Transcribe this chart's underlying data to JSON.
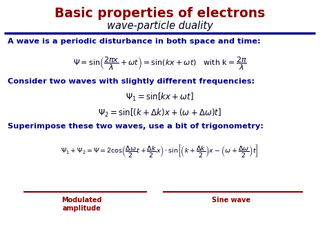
{
  "title": "Basic properties of electrons",
  "subtitle": "wave-particle duality",
  "title_color": "#8B0000",
  "text_color": "#000020",
  "blue_color": "#00008B",
  "dark_red": "#8B0000",
  "bg_color": "#FFFFFF",
  "line_color": "#00008B",
  "line1_text": "A wave is a periodic disturbance in both space and time:",
  "line2_text": "Consider two waves with slightly different frequencies:",
  "line3_text": "Superimpose these two waves, use a bit of trigonometry:",
  "label1": "Modulated\namplitude",
  "label2": "Sine wave"
}
